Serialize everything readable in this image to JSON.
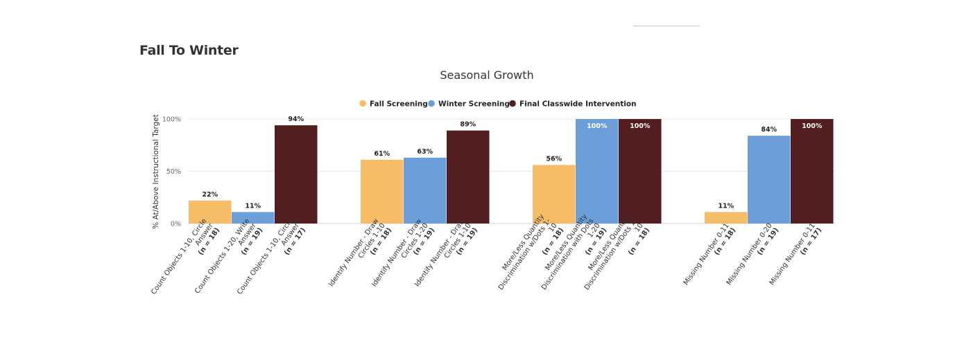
{
  "section": {
    "title": "Fall To Winter"
  },
  "chart_data": {
    "type": "bar",
    "title": "Seasonal Growth",
    "ylabel": "% At/Above Instructional Target",
    "ylim": [
      0,
      100
    ],
    "yticks": [
      "0%",
      "50%",
      "100%"
    ],
    "grid": true,
    "legend_position": "top-center",
    "series": [
      {
        "name": "Fall Screening",
        "color": "#f7bd66"
      },
      {
        "name": "Winter Screening",
        "color": "#6c9fd9"
      },
      {
        "name": "Final Classwide Intervention",
        "color": "#521e1f"
      }
    ],
    "groups": [
      {
        "bars": [
          {
            "series": 0,
            "value": 22,
            "label": "22%",
            "category": [
              "Count Objects 1-10, Circle",
              "Answer",
              "(n = 18)"
            ]
          },
          {
            "series": 1,
            "value": 11,
            "label": "11%",
            "category": [
              "Count Objects 1-20, Write",
              "Answer",
              "(n = 19)"
            ]
          },
          {
            "series": 2,
            "value": 94,
            "label": "94%",
            "category": [
              "Count Objects 1-10, Circle",
              "Answer",
              "(n = 17)"
            ]
          }
        ]
      },
      {
        "bars": [
          {
            "series": 0,
            "value": 61,
            "label": "61%",
            "category": [
              "Identify Number - Draw",
              "Circles 1-10",
              "(n = 18)"
            ]
          },
          {
            "series": 1,
            "value": 63,
            "label": "63%",
            "category": [
              "Identify Number - Draw",
              "Circles 1-20",
              "(n = 19)"
            ]
          },
          {
            "series": 2,
            "value": 89,
            "label": "89%",
            "category": [
              "Identify Number - Draw",
              "Circles 1-10",
              "(n = 19)"
            ]
          }
        ]
      },
      {
        "bars": [
          {
            "series": 0,
            "value": 56,
            "label": "56%",
            "category": [
              "More/Less Quantity",
              "Discrimination w/Dots 1-",
              "10",
              "(n = 18)"
            ]
          },
          {
            "series": 1,
            "value": 100,
            "label": "100%",
            "category": [
              "More/Less Quantity",
              "Discrimination with Dots",
              "1-20",
              "(n = 19)"
            ]
          },
          {
            "series": 2,
            "value": 100,
            "label": "100%",
            "category": [
              "More/Less Quantity",
              "Discrimination w/Dots 1-",
              "10",
              "(n = 18)"
            ]
          }
        ]
      },
      {
        "bars": [
          {
            "series": 0,
            "value": 11,
            "label": "11%",
            "category": [
              "Missing Number 0-11",
              "(n = 18)"
            ]
          },
          {
            "series": 1,
            "value": 84,
            "label": "84%",
            "category": [
              "Missing Number 0-20",
              "(n = 19)"
            ]
          },
          {
            "series": 2,
            "value": 100,
            "label": "100%",
            "category": [
              "Missing Number 0-11",
              "(n = 17)"
            ]
          }
        ]
      }
    ]
  }
}
